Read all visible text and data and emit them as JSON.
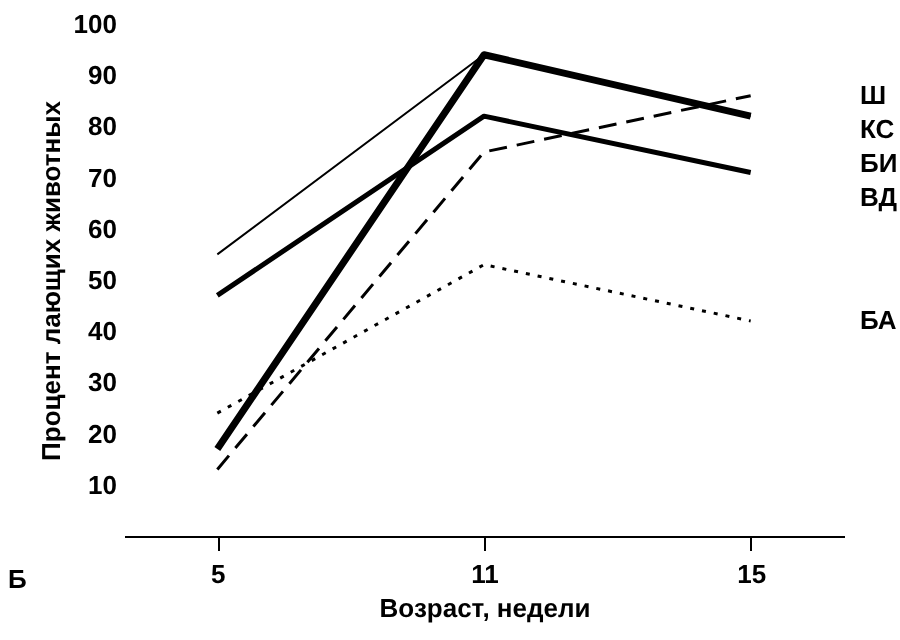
{
  "chart_data": {
    "type": "line",
    "xlabel": "Возраст, недели",
    "ylabel": "Процент лающих животных",
    "annotations": [
      "Б"
    ],
    "categories": [
      "5",
      "11",
      "15"
    ],
    "ylim": [
      0,
      100
    ],
    "yticks": [
      10,
      20,
      30,
      40,
      50,
      60,
      70,
      80,
      90,
      100
    ],
    "marker": "none",
    "series": [
      {
        "name": "Ш",
        "color": "#000000",
        "line_style": "dashed",
        "values": [
          13,
          75,
          86
        ]
      },
      {
        "name": "КС",
        "color": "#000000",
        "line_style": "solid",
        "values": [
          17,
          94,
          82
        ]
      },
      {
        "name": "БИ",
        "color": "#000000",
        "line_style": "solid",
        "values": [
          55,
          94,
          82
        ]
      },
      {
        "name": "ВД",
        "color": "#000000",
        "line_style": "solid",
        "values": [
          47,
          82,
          71
        ]
      },
      {
        "name": "БА",
        "color": "#000000",
        "line_style": "dotted",
        "values": [
          24,
          53,
          42
        ]
      }
    ]
  }
}
